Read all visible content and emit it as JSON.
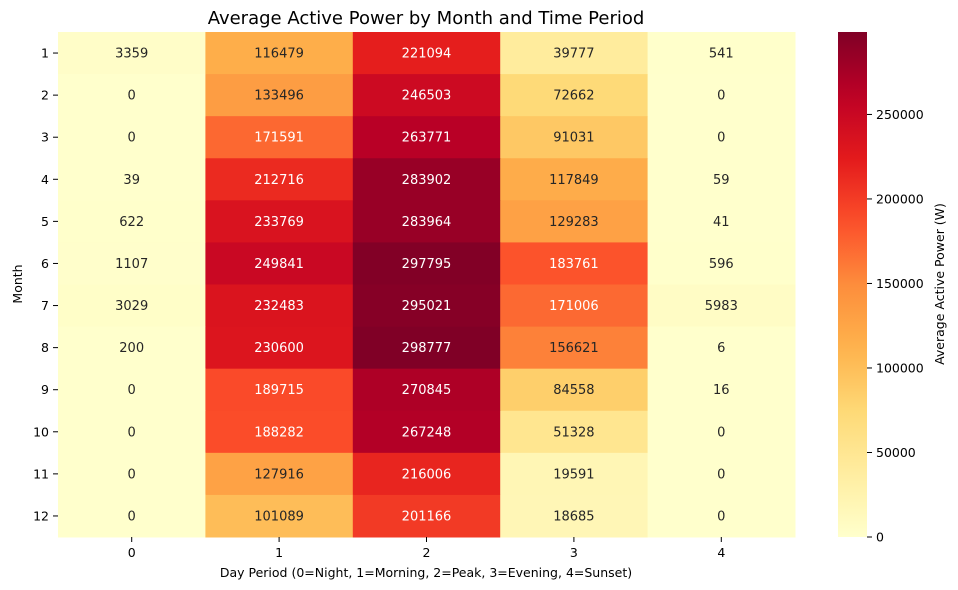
{
  "chart_data": {
    "type": "heatmap",
    "title": "Average Active Power by Month and Time Period",
    "xlabel": "Day Period (0=Night, 1=Morning, 2=Peak, 3=Evening, 4=Sunset)",
    "ylabel": "Month",
    "x_categories": [
      "0",
      "1",
      "2",
      "3",
      "4"
    ],
    "y_categories": [
      "1",
      "2",
      "3",
      "4",
      "5",
      "6",
      "7",
      "8",
      "9",
      "10",
      "11",
      "12"
    ],
    "values": [
      [
        3359,
        116479,
        221094,
        39777,
        541
      ],
      [
        0,
        133496,
        246503,
        72662,
        0
      ],
      [
        0,
        171591,
        263771,
        91031,
        0
      ],
      [
        39,
        212716,
        283902,
        117849,
        59
      ],
      [
        622,
        233769,
        283964,
        129283,
        41
      ],
      [
        1107,
        249841,
        297795,
        183761,
        596
      ],
      [
        3029,
        232483,
        295021,
        171006,
        5983
      ],
      [
        200,
        230600,
        298777,
        156621,
        6
      ],
      [
        0,
        189715,
        270845,
        84558,
        16
      ],
      [
        0,
        188282,
        267248,
        51328,
        0
      ],
      [
        0,
        127916,
        216006,
        19591,
        0
      ],
      [
        0,
        101089,
        201166,
        18685,
        0
      ]
    ],
    "colorbar": {
      "label": "Average Active Power (W)",
      "colormap": "YlOrRd",
      "vmin": 0,
      "vmax": 298777,
      "ticks": [
        0,
        50000,
        100000,
        150000,
        200000,
        250000
      ]
    },
    "annotations": true
  }
}
